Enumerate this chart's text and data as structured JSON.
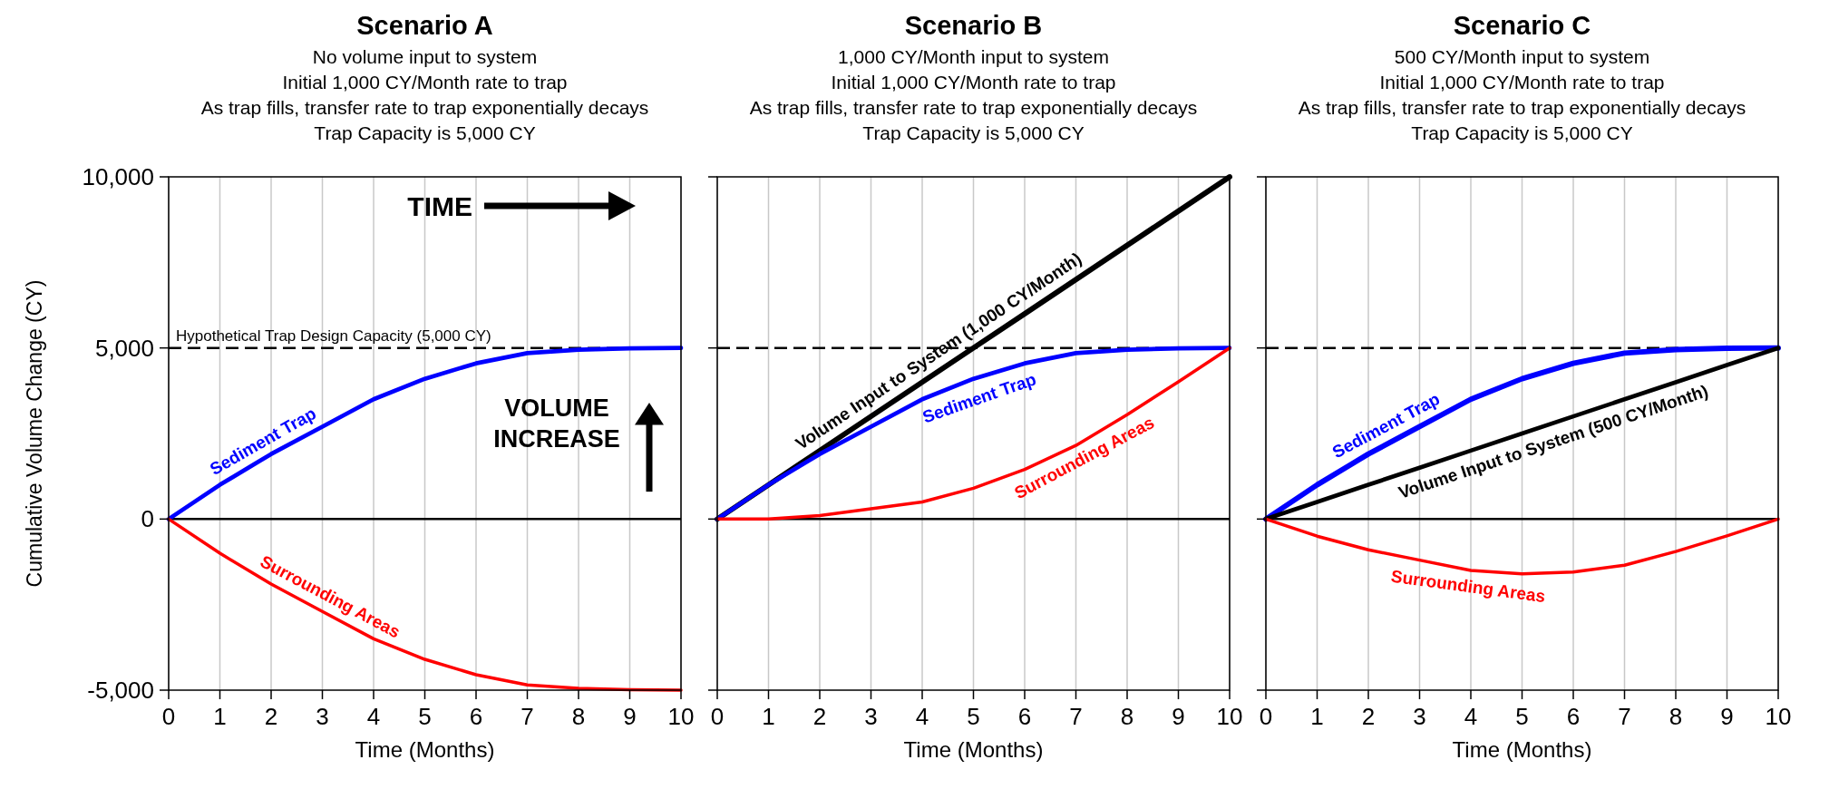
{
  "chart_data": [
    {
      "type": "line",
      "title": "Scenario A",
      "subtitle": "No volume input to system\nInitial 1,000 CY/Month rate to trap\nAs trap fills, transfer rate to trap exponentially decays\nTrap Capacity is 5,000 CY",
      "xlabel": "Time (Months)",
      "ylabel": "Cumulative Volume Change (CY)",
      "x": [
        0,
        1,
        2,
        3,
        4,
        5,
        6,
        7,
        8,
        9,
        10
      ],
      "xlim": [
        0,
        10
      ],
      "xticks": [
        0,
        1,
        2,
        3,
        4,
        5,
        6,
        7,
        8,
        9,
        10
      ],
      "ylim": [
        -5000,
        10000
      ],
      "yticks": [
        {
          "value": -5000,
          "label": "-5,000"
        },
        0,
        {
          "value": 5000,
          "label": "5,000"
        },
        {
          "value": 10000,
          "label": "10,000"
        }
      ],
      "grid": "x",
      "series": [
        {
          "name": "Sediment Trap",
          "color": "#0000ff",
          "values": [
            0,
            1000,
            1900,
            2700,
            3500,
            4100,
            4550,
            4850,
            4950,
            4990,
            5000
          ]
        },
        {
          "name": "Surrounding Areas",
          "color": "#ff0000",
          "values": [
            0,
            -1000,
            -1900,
            -2700,
            -3500,
            -4100,
            -4550,
            -4850,
            -4950,
            -4990,
            -5000
          ]
        }
      ],
      "ref_lines": [
        {
          "axis": "y",
          "value": 0,
          "color": "#000000",
          "line_style": "solid"
        },
        {
          "axis": "y",
          "value": 5000,
          "label": "Hypothetical Trap Design Capacity (5,000 CY)",
          "color": "#000000",
          "line_style": "dashed"
        }
      ],
      "annotations": [
        "TIME",
        "VOLUME INCREASE"
      ]
    },
    {
      "type": "line",
      "title": "Scenario B",
      "subtitle": "1,000 CY/Month input to system\nInitial 1,000 CY/Month rate to trap\nAs trap fills, transfer rate to trap exponentially decays\nTrap Capacity is 5,000 CY",
      "xlabel": "Time (Months)",
      "x": [
        0,
        1,
        2,
        3,
        4,
        5,
        6,
        7,
        8,
        9,
        10
      ],
      "xlim": [
        0,
        10
      ],
      "xticks": [
        0,
        1,
        2,
        3,
        4,
        5,
        6,
        7,
        8,
        9,
        10
      ],
      "ylim": [
        -5000,
        10000
      ],
      "yticks": [
        -5000,
        0,
        5000,
        10000
      ],
      "tick_labels": "x",
      "grid": "x",
      "series": [
        {
          "name": "Volume Input to System (1,000 CY/Month)",
          "color": "#000000",
          "values": [
            0,
            1000,
            2000,
            3000,
            4000,
            5000,
            6000,
            7000,
            8000,
            9000,
            10000
          ]
        },
        {
          "name": "Sediment Trap",
          "color": "#0000ff",
          "values": [
            0,
            1000,
            1900,
            2700,
            3500,
            4100,
            4550,
            4850,
            4950,
            4990,
            5000
          ]
        },
        {
          "name": "Surrounding Areas",
          "color": "#ff0000",
          "values": [
            0,
            0,
            100,
            300,
            500,
            900,
            1450,
            2150,
            3050,
            4010,
            5000
          ]
        }
      ],
      "ref_lines": [
        {
          "axis": "y",
          "value": 0,
          "color": "#000000",
          "line_style": "solid"
        },
        {
          "axis": "y",
          "value": 5000,
          "color": "#000000",
          "line_style": "dashed"
        }
      ]
    },
    {
      "type": "line",
      "title": "Scenario C",
      "subtitle": "500 CY/Month input to system\nInitial 1,000 CY/Month rate to trap\nAs trap fills, transfer rate to trap exponentially decays\nTrap Capacity is 5,000 CY",
      "xlabel": "Time (Months)",
      "x": [
        0,
        1,
        2,
        3,
        4,
        5,
        6,
        7,
        8,
        9,
        10
      ],
      "xlim": [
        0,
        10
      ],
      "xticks": [
        0,
        1,
        2,
        3,
        4,
        5,
        6,
        7,
        8,
        9,
        10
      ],
      "ylim": [
        -5000,
        10000
      ],
      "yticks": [
        -5000,
        0,
        5000,
        10000
      ],
      "tick_labels": "x",
      "grid": "x",
      "series": [
        {
          "name": "Sediment Trap",
          "color": "#0000ff",
          "values": [
            0,
            1000,
            1900,
            2700,
            3500,
            4100,
            4550,
            4850,
            4950,
            4990,
            5000
          ]
        },
        {
          "name": "Volume Input to System (500 CY/Month)",
          "color": "#000000",
          "values": [
            0,
            500,
            1000,
            1500,
            2000,
            2500,
            3000,
            3500,
            4000,
            4500,
            5000
          ]
        },
        {
          "name": "Surrounding Areas",
          "color": "#ff0000",
          "values": [
            0,
            -500,
            -900,
            -1200,
            -1500,
            -1600,
            -1550,
            -1350,
            -950,
            -490,
            0
          ]
        }
      ],
      "ref_lines": [
        {
          "axis": "y",
          "value": 0,
          "color": "#000000",
          "line_style": "solid"
        },
        {
          "axis": "y",
          "value": 5000,
          "color": "#000000",
          "line_style": "dashed"
        }
      ]
    }
  ]
}
